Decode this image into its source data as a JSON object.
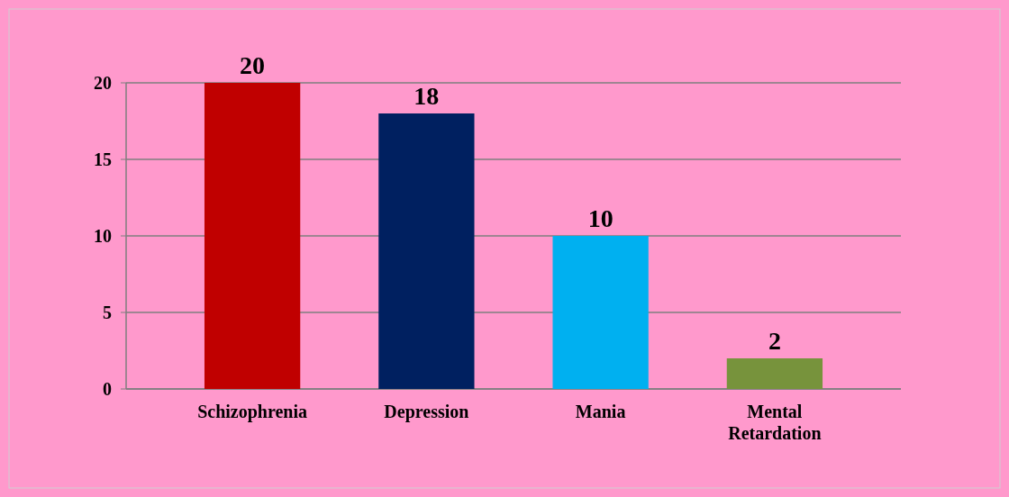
{
  "chart_data": {
    "type": "bar",
    "categories": [
      "Schizophrenia",
      "Depression",
      "Mania",
      "Mental Retardation"
    ],
    "values": [
      20,
      18,
      10,
      2
    ],
    "colors": [
      "#c00000",
      "#002060",
      "#00b0f0",
      "#77933c"
    ],
    "ylim": [
      0,
      20
    ],
    "yticks": [
      0,
      5,
      10,
      15,
      20
    ],
    "grid": "y",
    "data_labels": true
  }
}
